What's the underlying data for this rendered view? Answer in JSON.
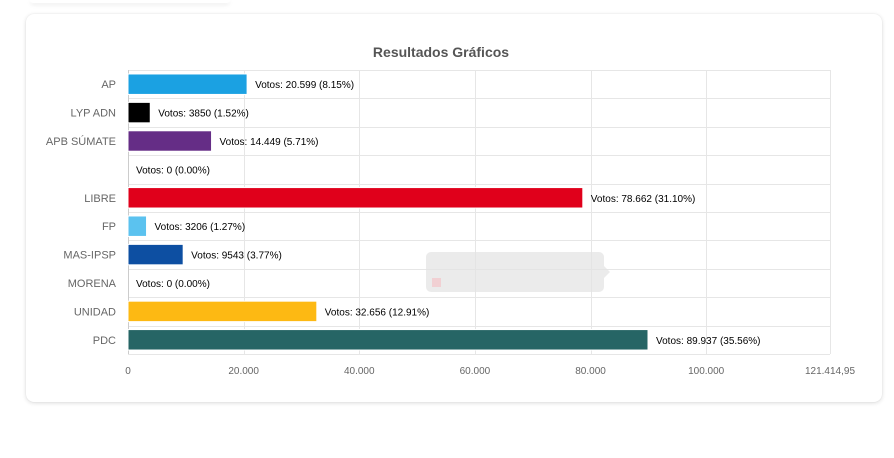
{
  "chart_data": {
    "type": "bar",
    "orientation": "horizontal",
    "title": "Resultados Gráficos",
    "xlabel": "",
    "ylabel": "",
    "xlim": [
      0,
      121414.95
    ],
    "x_ticks": [
      {
        "value": 0,
        "label": "0"
      },
      {
        "value": 20000,
        "label": "20.000"
      },
      {
        "value": 40000,
        "label": "40.000"
      },
      {
        "value": 60000,
        "label": "60.000"
      },
      {
        "value": 80000,
        "label": "80.000"
      },
      {
        "value": 100000,
        "label": "100.000"
      },
      {
        "value": 121414.95,
        "label": "121.414,95"
      }
    ],
    "grid": true,
    "legend": "none",
    "categories": [
      "AP",
      "LYP ADN",
      "APB SÚMATE",
      "",
      "LIBRE",
      "FP",
      "MAS-IPSP",
      "MORENA",
      "UNIDAD",
      "PDC"
    ],
    "values": [
      20599,
      3850,
      14449,
      0,
      78662,
      3206,
      9543,
      0,
      32656,
      89937
    ],
    "data_labels": [
      "Votos: 20.599 (8.15%)",
      "Votos: 3850 (1.52%)",
      "Votos: 14.449 (5.71%)",
      "Votos: 0 (0.00%)",
      "Votos: 78.662 (31.10%)",
      "Votos: 3206 (1.27%)",
      "Votos: 9543 (3.77%)",
      "Votos: 0 (0.00%)",
      "Votos: 32.656 (12.91%)",
      "Votos: 89.937 (35.56%)"
    ],
    "colors": [
      "#1ba1e2",
      "#000000",
      "#652d86",
      "#ffffff",
      "#e0001b",
      "#5bc2ef",
      "#0d4fa2",
      "#a8212c",
      "#fdb913",
      "#266565"
    ]
  }
}
